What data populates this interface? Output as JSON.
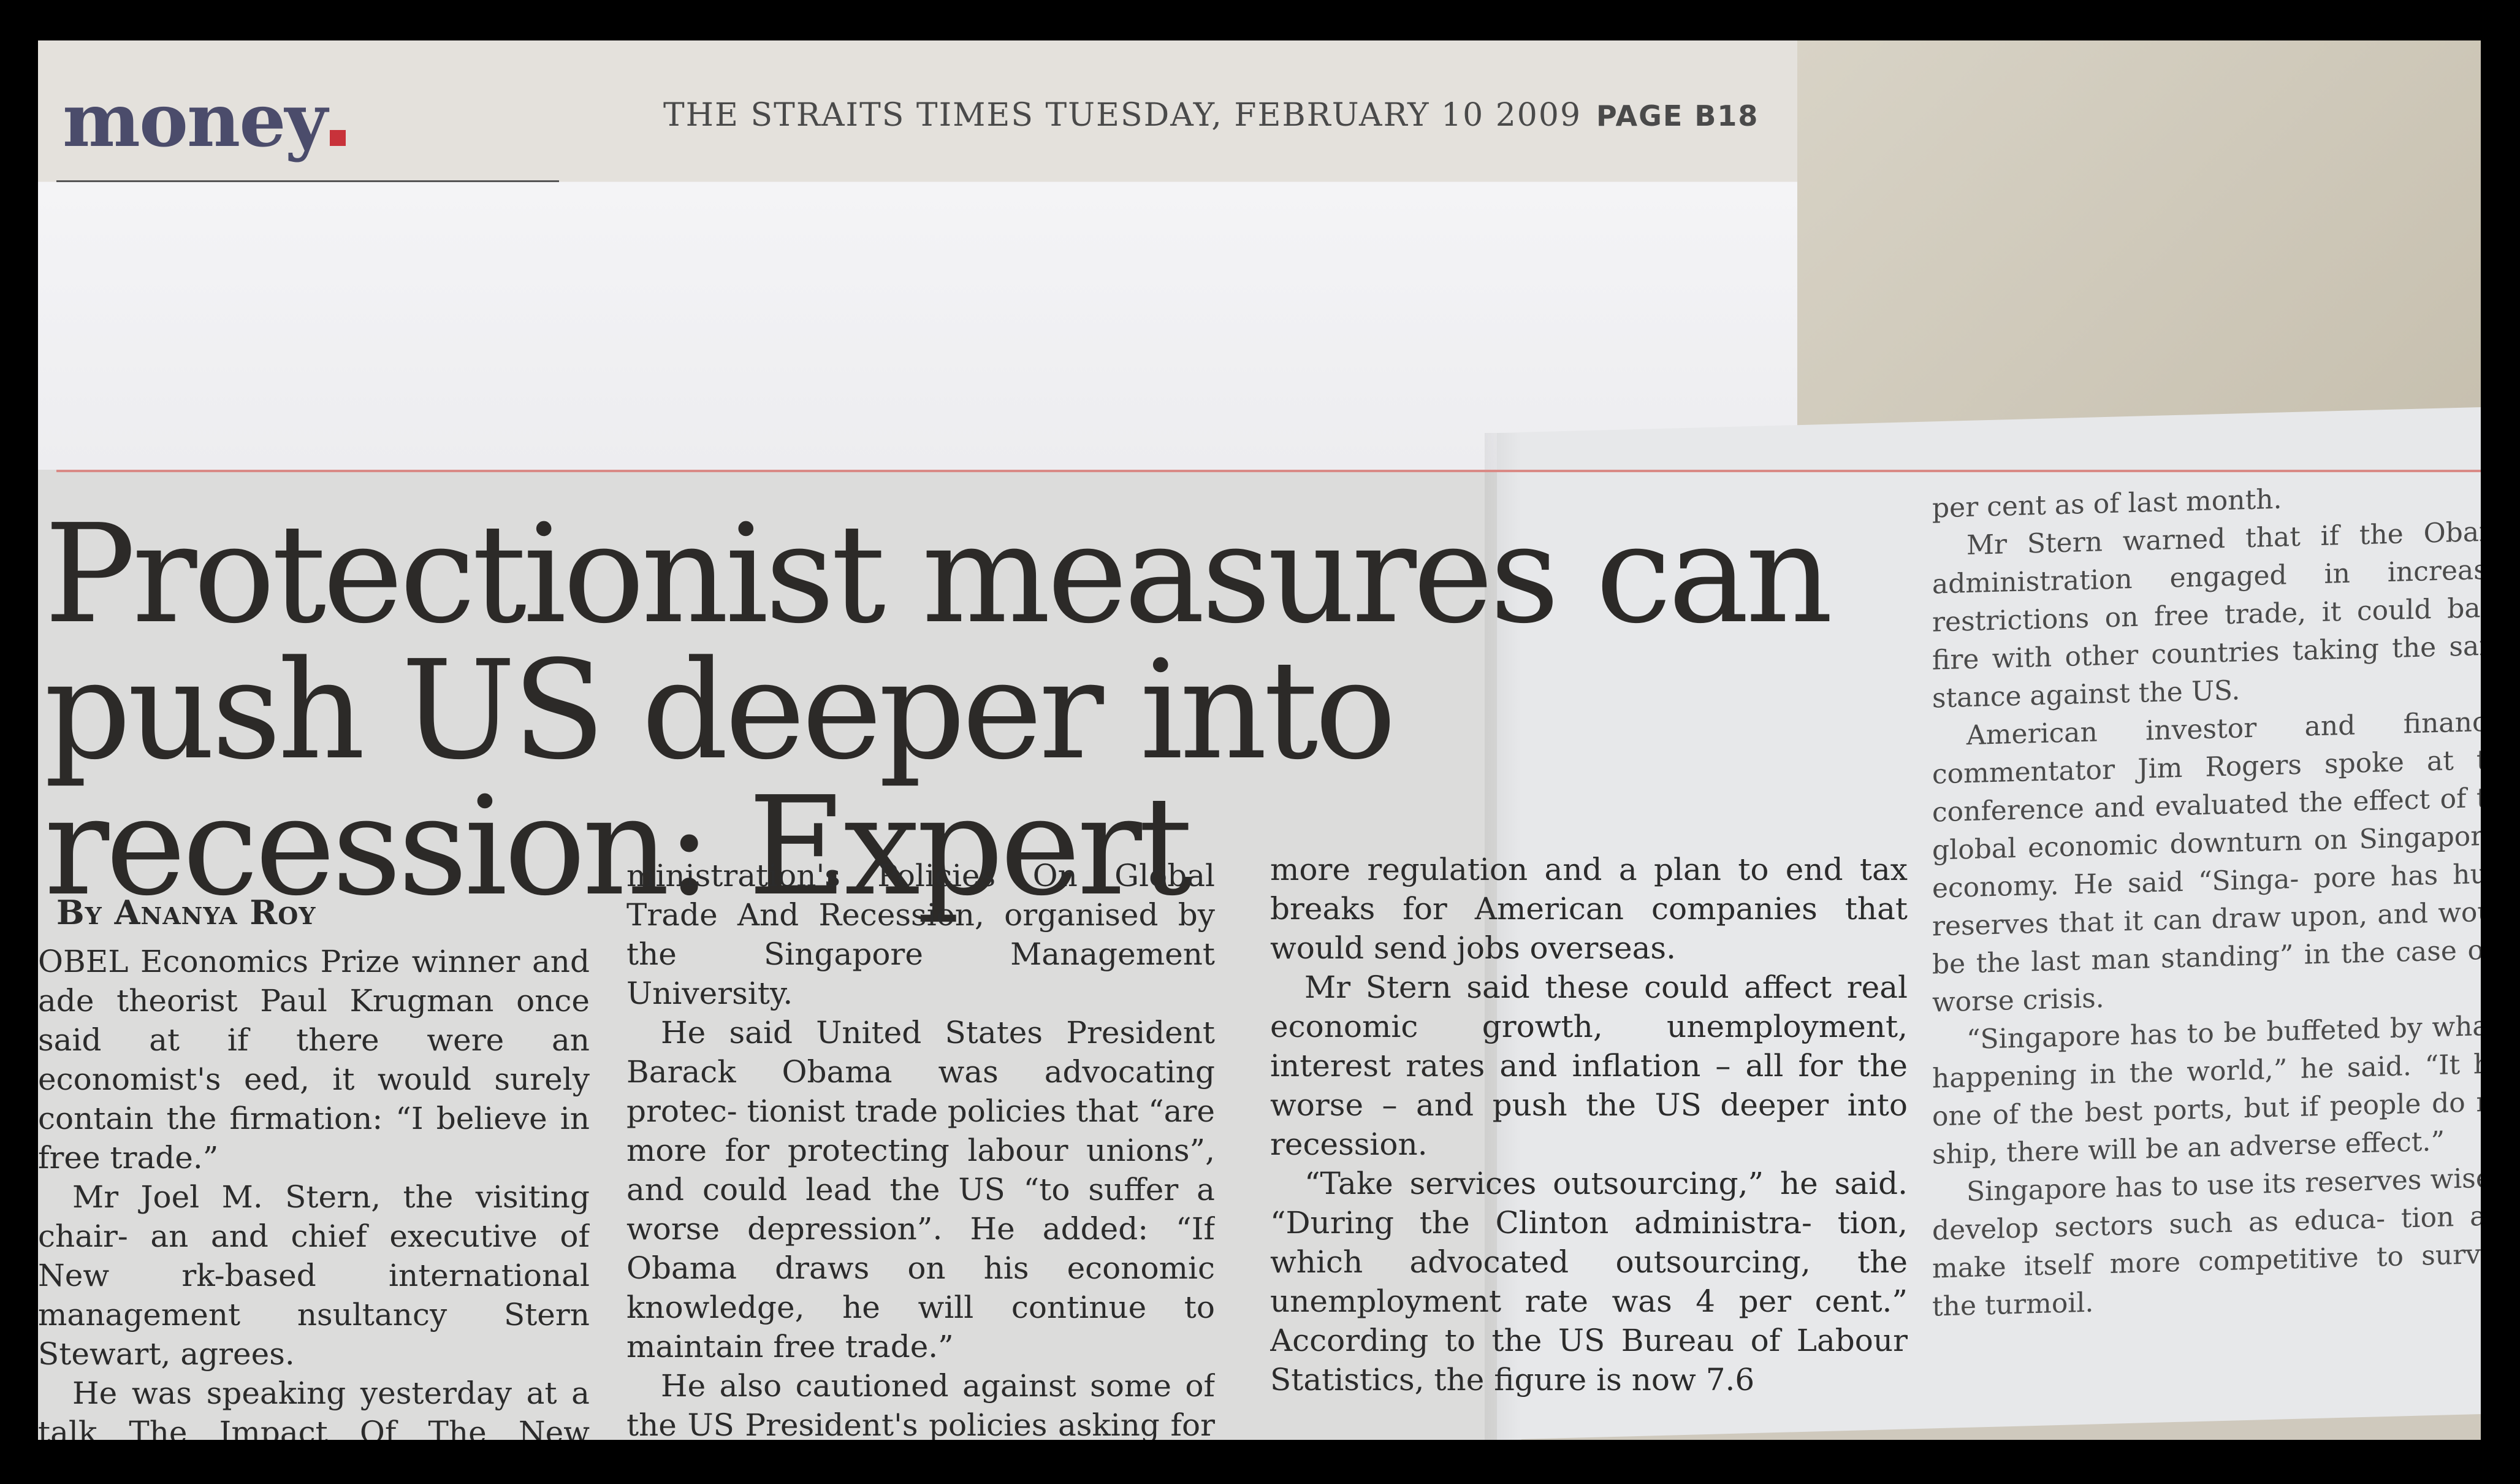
{
  "header": {
    "section": "money",
    "masthead": "THE STRAITS TIMES TUESDAY, FEBRUARY 10 2009",
    "page": "PAGE B18"
  },
  "article": {
    "headline": "Protectionist measures can push US deeper into recession: Expert",
    "byline": "By Ananya Roy",
    "col1": [
      "OBEL Economics Prize winner and ade theorist Paul Krugman once said at if there were an economist's eed, it would surely contain the firmation: “I believe in free trade.”",
      "Mr Joel M. Stern, the visiting chair- an and chief executive of New rk-based international management nsultancy Stern Stewart, agrees.",
      "He was speaking yesterday at a talk The Impact Of The New Obama Ad-"
    ],
    "col2": [
      "ministration's Policies On Global Trade And Recession, organised by the Singapore Management University.",
      "He said United States President Barack Obama was advocating protec- tionist trade policies that “are more for protecting labour unions”, and could lead the US “to suffer a worse depression”. He added: “If Obama draws on his economic knowledge, he will continue to maintain free trade.”",
      "He also cautioned against some of the US President's policies asking for increased government intervention,"
    ],
    "col3": [
      "more regulation and a plan to end tax breaks for American companies that would send jobs overseas.",
      "Mr Stern said these could affect real economic growth, unemployment, interest rates and inflation – all for the worse – and push the US deeper into recession.",
      "“Take services outsourcing,” he said. “During the Clinton administra- tion, which advocated outsourcing, the unemployment rate was 4 per cent.” According to the US Bureau of Labour Statistics, the figure is now 7.6"
    ],
    "col4": [
      "per cent as of last month.",
      "Mr Stern warned that if the Obama administration engaged in increased restrictions on free trade, it could back- fire with other countries taking the same stance against the US.",
      "American investor and financial commentator Jim Rogers spoke at the conference and evaluated the effect of the global economic downturn on Singapore's economy. He said “Singa- pore has huge reserves that it can draw upon, and would be the last man standing” in the case of a worse crisis.",
      "“Singapore has to be buffeted by what's happening in the world,” he said. “It has one of the best ports, but if people do not ship, there will be an adverse effect.”",
      "Singapore has to use its reserves wisely, develop sectors such as educa- tion and make itself more competitive to survive the turmoil."
    ]
  }
}
